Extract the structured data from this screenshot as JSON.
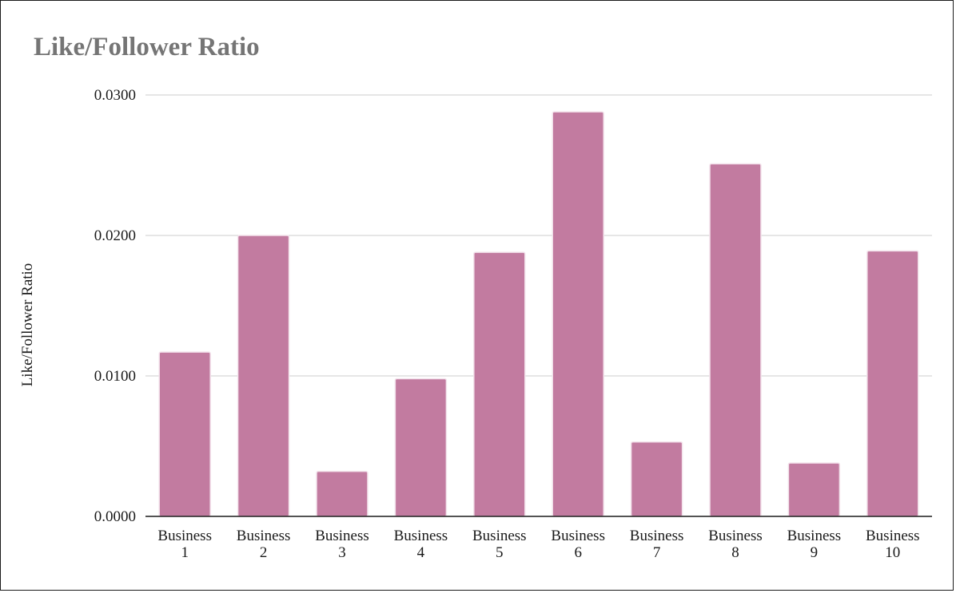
{
  "chart_data": {
    "type": "bar",
    "title": "Like/Follower Ratio",
    "xlabel": "",
    "ylabel": "Like/Follower Ratio",
    "categories": [
      [
        "Business",
        "1"
      ],
      [
        "Business",
        "2"
      ],
      [
        "Business",
        "3"
      ],
      [
        "Business",
        "4"
      ],
      [
        "Business",
        "5"
      ],
      [
        "Business",
        "6"
      ],
      [
        "Business",
        "7"
      ],
      [
        "Business",
        "8"
      ],
      [
        "Business",
        "9"
      ],
      [
        "Business",
        "10"
      ]
    ],
    "values": [
      0.0117,
      0.02,
      0.0032,
      0.0098,
      0.0188,
      0.0288,
      0.0053,
      0.0251,
      0.0038,
      0.0189
    ],
    "ylim": [
      0,
      0.03
    ],
    "yticks": [
      {
        "value": 0,
        "label": "0.0000"
      },
      {
        "value": 0.01,
        "label": "0.0100"
      },
      {
        "value": 0.02,
        "label": "0.0200"
      },
      {
        "value": 0.03,
        "label": "0.0300"
      }
    ],
    "grid": true,
    "legend": "none",
    "colors": {
      "bar": "#c27ba0",
      "bar_edge": "#f3e3ec",
      "grid": "#cccccc",
      "axis": "#1a1a1a",
      "title": "#757575"
    }
  }
}
